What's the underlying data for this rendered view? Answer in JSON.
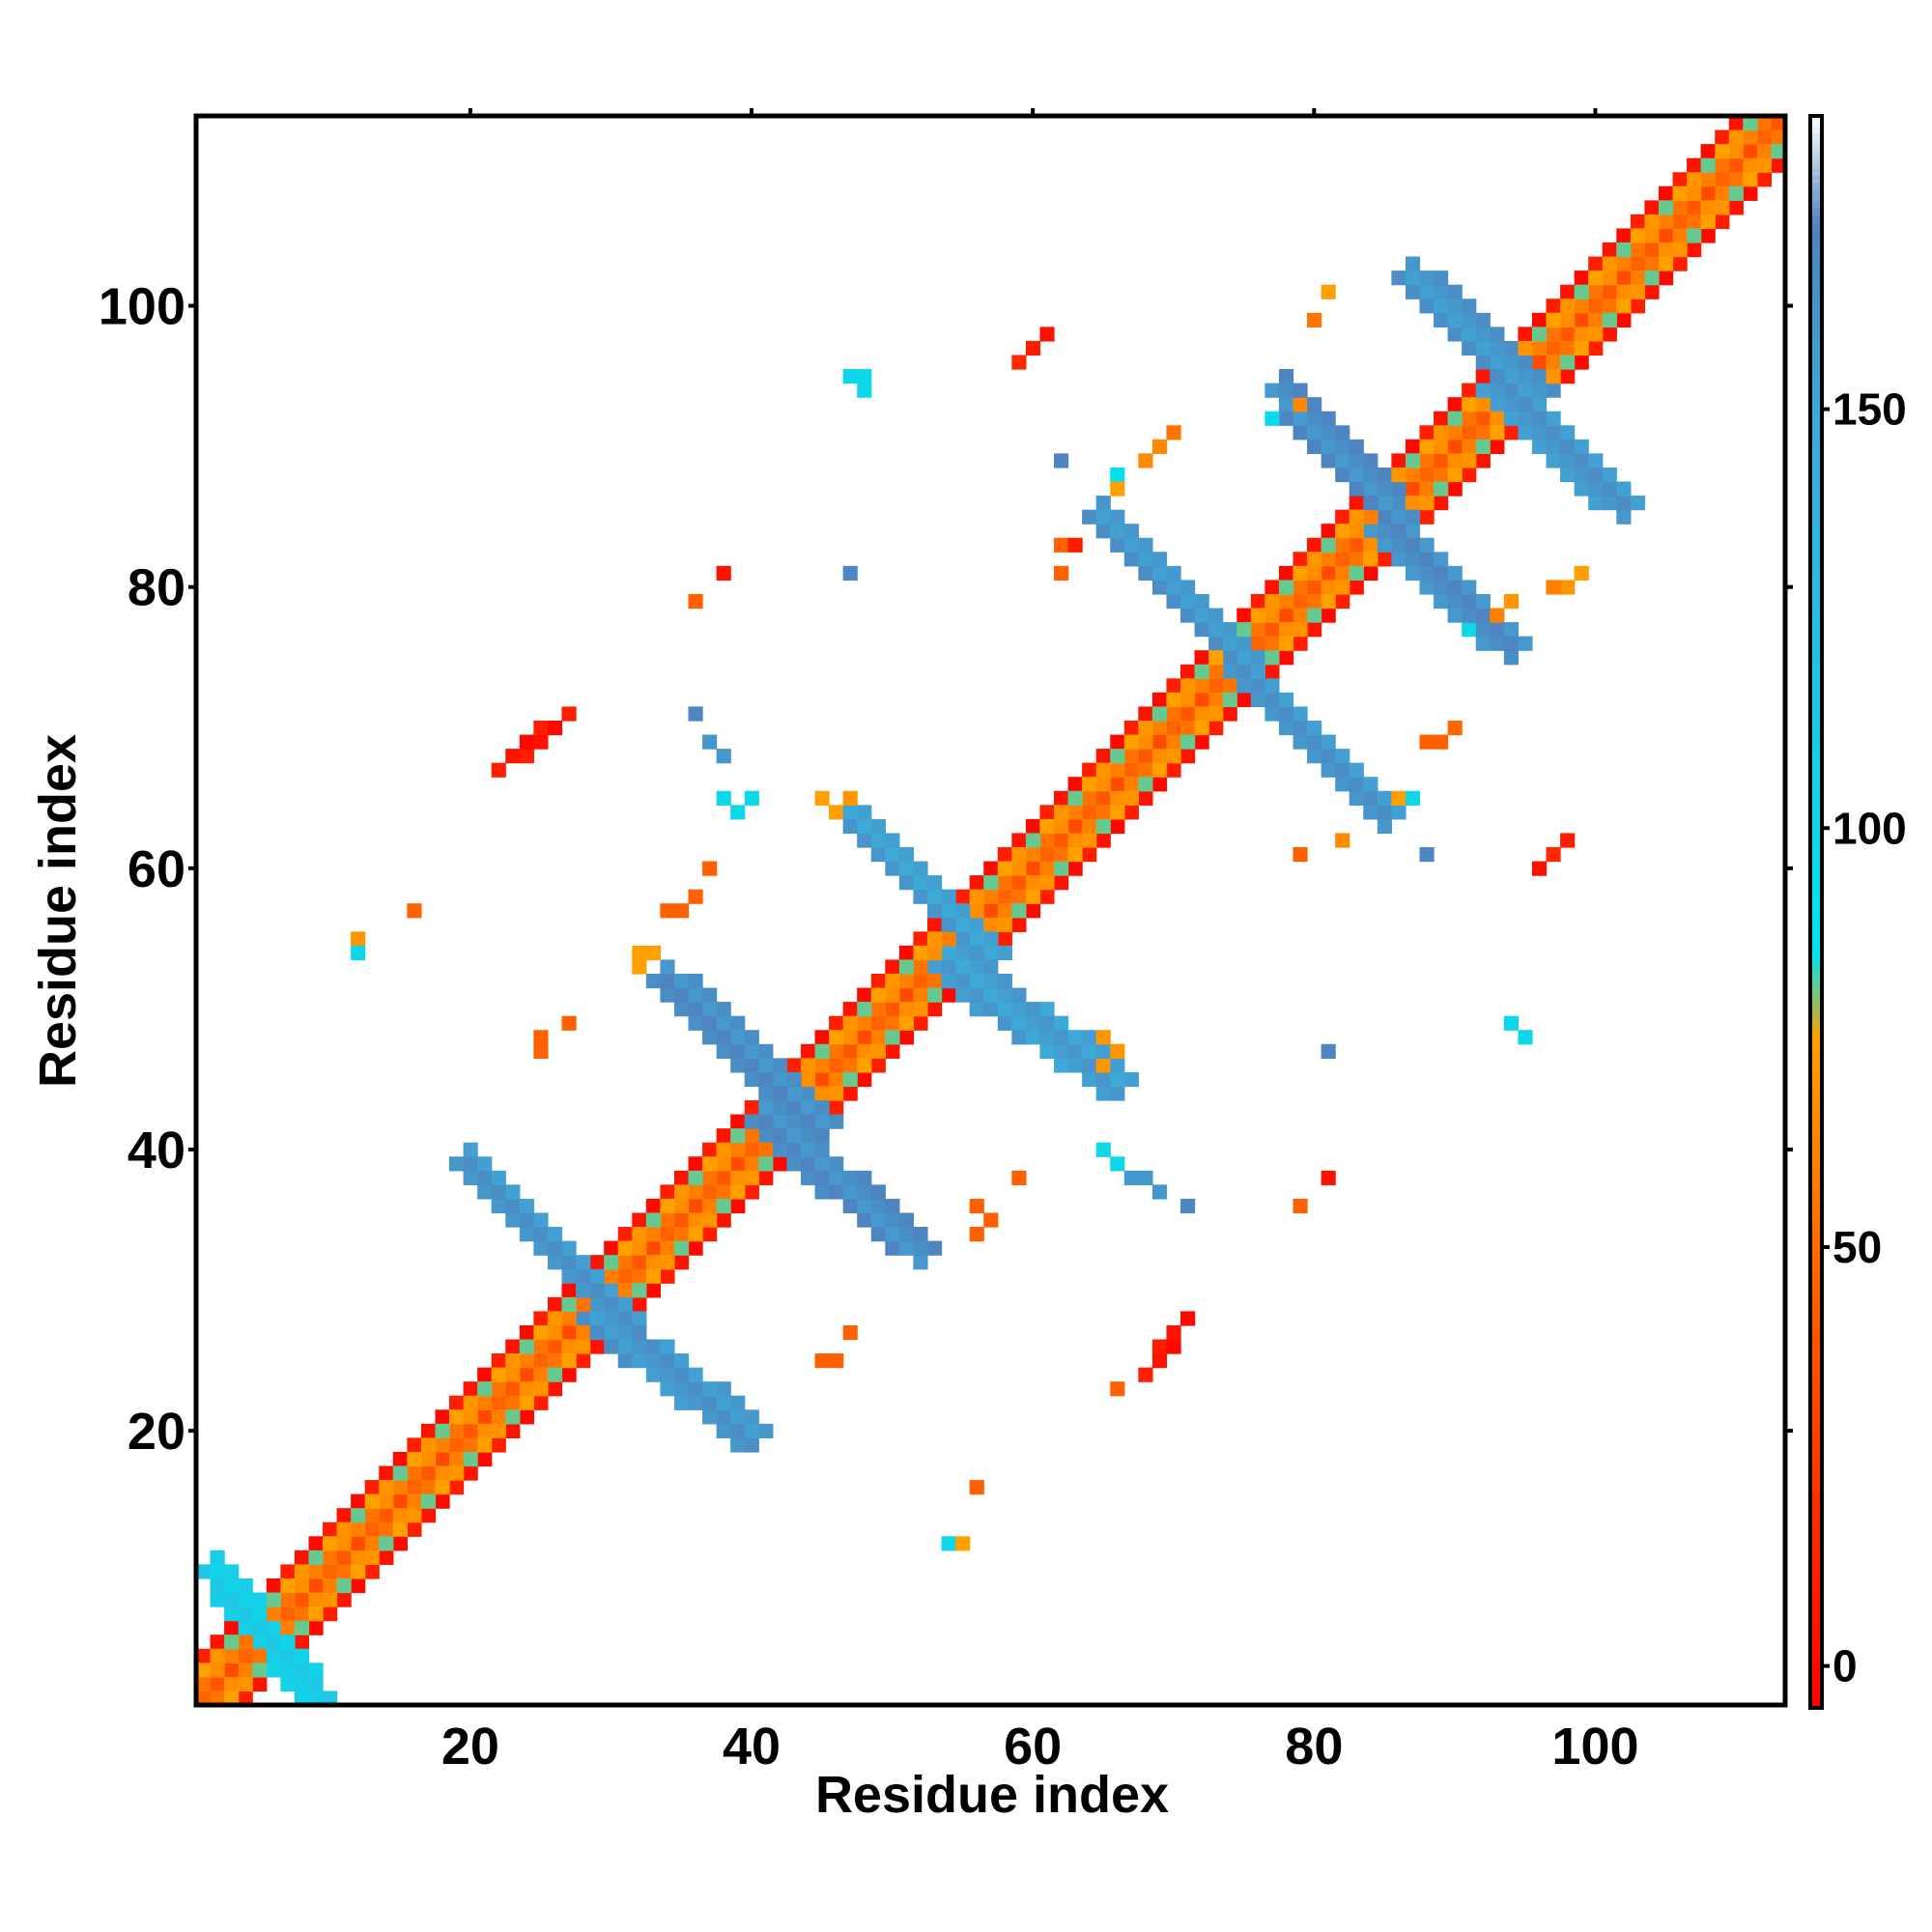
{
  "chart_data": {
    "type": "heatmap",
    "title": "",
    "xlabel": "Residue index",
    "ylabel": "Residue index",
    "xlim": [
      1,
      113
    ],
    "ylim": [
      1,
      113
    ],
    "x_ticks": [
      20,
      40,
      60,
      80,
      100
    ],
    "y_ticks": [
      20,
      40,
      60,
      80,
      100
    ],
    "colorbar": {
      "range": [
        -5,
        185
      ],
      "ticks": [
        0,
        50,
        100,
        150
      ],
      "stops": [
        {
          "value": -5,
          "color": "#ff0000"
        },
        {
          "value": 50,
          "color": "#ff6a00"
        },
        {
          "value": 75,
          "color": "#ffa000"
        },
        {
          "value": 85,
          "color": "#00e5f0"
        },
        {
          "value": 150,
          "color": "#3fa7d6"
        },
        {
          "value": 172,
          "color": "#4f83bf"
        },
        {
          "value": 185,
          "color": "#ffffff"
        }
      ]
    },
    "segments": [
      {
        "x1": 1,
        "y1": 1,
        "x2": 113,
        "y2": 113,
        "hw": 0.6,
        "value": 40
      },
      {
        "x1": 2,
        "y1": 1,
        "x2": 113,
        "y2": 112,
        "hw": 0.6,
        "value": 60
      },
      {
        "x1": 1,
        "y1": 2,
        "x2": 112,
        "y2": 113,
        "hw": 0.6,
        "value": 60
      },
      {
        "x1": 4,
        "y1": 1,
        "x2": 113,
        "y2": 110,
        "hw": 0.6,
        "value": 5
      },
      {
        "x1": 1,
        "y1": 4,
        "x2": 110,
        "y2": 113,
        "hw": 0.6,
        "value": 5
      },
      {
        "x1": 3,
        "y1": 1,
        "x2": 113,
        "y2": 111,
        "hw": 0.5,
        "value": 75
      },
      {
        "x1": 1,
        "y1": 3,
        "x2": 111,
        "y2": 113,
        "hw": 0.5,
        "value": 75
      },
      {
        "x1": 20,
        "y1": 39,
        "x2": 31,
        "y2": 28,
        "hw": 1.4,
        "value": 160
      },
      {
        "x1": 29,
        "y1": 28,
        "x2": 40,
        "y2": 20,
        "hw": 1.4,
        "value": 160
      },
      {
        "x1": 34,
        "y1": 52,
        "x2": 45,
        "y2": 42,
        "hw": 1.4,
        "value": 165
      },
      {
        "x1": 41,
        "y1": 42,
        "x2": 52,
        "y2": 33,
        "hw": 1.4,
        "value": 165
      },
      {
        "x1": 47,
        "y1": 64,
        "x2": 57,
        "y2": 54,
        "hw": 1.4,
        "value": 155
      },
      {
        "x1": 54,
        "y1": 53,
        "x2": 66,
        "y2": 45,
        "hw": 1.4,
        "value": 155
      },
      {
        "x1": 65,
        "y1": 85,
        "x2": 75,
        "y2": 75,
        "hw": 1.4,
        "value": 160
      },
      {
        "x1": 75,
        "y1": 74,
        "x2": 85,
        "y2": 64,
        "hw": 1.4,
        "value": 160
      },
      {
        "x1": 78,
        "y1": 94,
        "x2": 86,
        "y2": 85,
        "hw": 1.4,
        "value": 165
      },
      {
        "x1": 85,
        "y1": 84,
        "x2": 94,
        "y2": 76,
        "hw": 1.4,
        "value": 165
      },
      {
        "x1": 87,
        "y1": 102,
        "x2": 96,
        "y2": 94,
        "hw": 1.4,
        "value": 160
      },
      {
        "x1": 93,
        "y1": 94,
        "x2": 102,
        "y2": 86,
        "hw": 1.4,
        "value": 160
      },
      {
        "x1": 2,
        "y1": 10,
        "x2": 9,
        "y2": 1,
        "hw": 1.3,
        "value": 110
      },
      {
        "x1": 22,
        "y1": 67,
        "x2": 27,
        "y2": 71,
        "hw": 0.6,
        "value": 5
      },
      {
        "x1": 68,
        "y1": 24,
        "x2": 71,
        "y2": 28,
        "hw": 0.6,
        "value": 5
      },
      {
        "x1": 59,
        "y1": 96,
        "x2": 61,
        "y2": 98,
        "hw": 0.6,
        "value": 10
      },
      {
        "x1": 96,
        "y1": 60,
        "x2": 98,
        "y2": 62,
        "hw": 0.6,
        "value": 10
      }
    ],
    "cells": [
      [
        81,
        101,
        75
      ],
      [
        80,
        99,
        55
      ],
      [
        48,
        95,
        100
      ],
      [
        47,
        95,
        100
      ],
      [
        48,
        94,
        100
      ],
      [
        79,
        93,
        65
      ],
      [
        77,
        92,
        95
      ],
      [
        69,
        90,
        65
      ],
      [
        68,
        89,
        65
      ],
      [
        62,
        89,
        170
      ],
      [
        66,
        88,
        90
      ],
      [
        66,
        87,
        75
      ],
      [
        70,
        91,
        55
      ],
      [
        62,
        83,
        45
      ],
      [
        63,
        83,
        10
      ],
      [
        62,
        81,
        45
      ],
      [
        47,
        81,
        170
      ],
      [
        38,
        81,
        5
      ],
      [
        36,
        79,
        45
      ],
      [
        98,
        80,
        70
      ],
      [
        99,
        81,
        75
      ],
      [
        97,
        80,
        60
      ],
      [
        94,
        79,
        70
      ],
      [
        93,
        78,
        60
      ],
      [
        91,
        77,
        100
      ],
      [
        36,
        71,
        170
      ],
      [
        37,
        69,
        160
      ],
      [
        38,
        68,
        160
      ],
      [
        38,
        65,
        100
      ],
      [
        40,
        65,
        100
      ],
      [
        39,
        64,
        100
      ],
      [
        45,
        65,
        75
      ],
      [
        46,
        64,
        75
      ],
      [
        47,
        65,
        70
      ],
      [
        88,
        69,
        45
      ],
      [
        89,
        69,
        45
      ],
      [
        90,
        70,
        50
      ],
      [
        86,
        65,
        75
      ],
      [
        87,
        65,
        100
      ],
      [
        82,
        62,
        65
      ],
      [
        79,
        61,
        45
      ],
      [
        88,
        61,
        170
      ],
      [
        37,
        60,
        45
      ],
      [
        36,
        58,
        45
      ],
      [
        34,
        57,
        45
      ],
      [
        35,
        57,
        45
      ],
      [
        16,
        57,
        45
      ],
      [
        12,
        55,
        70
      ],
      [
        12,
        54,
        100
      ],
      [
        32,
        54,
        75
      ],
      [
        33,
        54,
        75
      ],
      [
        32,
        53,
        75
      ],
      [
        27,
        49,
        45
      ],
      [
        25,
        48,
        45
      ],
      [
        25,
        47,
        45
      ],
      [
        65,
        48,
        70
      ],
      [
        66,
        47,
        70
      ],
      [
        65,
        46,
        70
      ],
      [
        94,
        49,
        100
      ],
      [
        95,
        48,
        100
      ],
      [
        81,
        47,
        170
      ],
      [
        65,
        40,
        100
      ],
      [
        66,
        39,
        100
      ],
      [
        67,
        38,
        160
      ],
      [
        68,
        38,
        160
      ],
      [
        69,
        37,
        160
      ],
      [
        71,
        36,
        170
      ],
      [
        56,
        36,
        45
      ],
      [
        57,
        35,
        45
      ],
      [
        56,
        34,
        45
      ],
      [
        59,
        38,
        45
      ],
      [
        81,
        38,
        5
      ],
      [
        79,
        36,
        45
      ],
      [
        47,
        27,
        45
      ],
      [
        45,
        25,
        45
      ],
      [
        46,
        25,
        45
      ],
      [
        66,
        23,
        45
      ],
      [
        56,
        16,
        45
      ],
      [
        54,
        12,
        100
      ],
      [
        55,
        12,
        75
      ]
    ]
  }
}
